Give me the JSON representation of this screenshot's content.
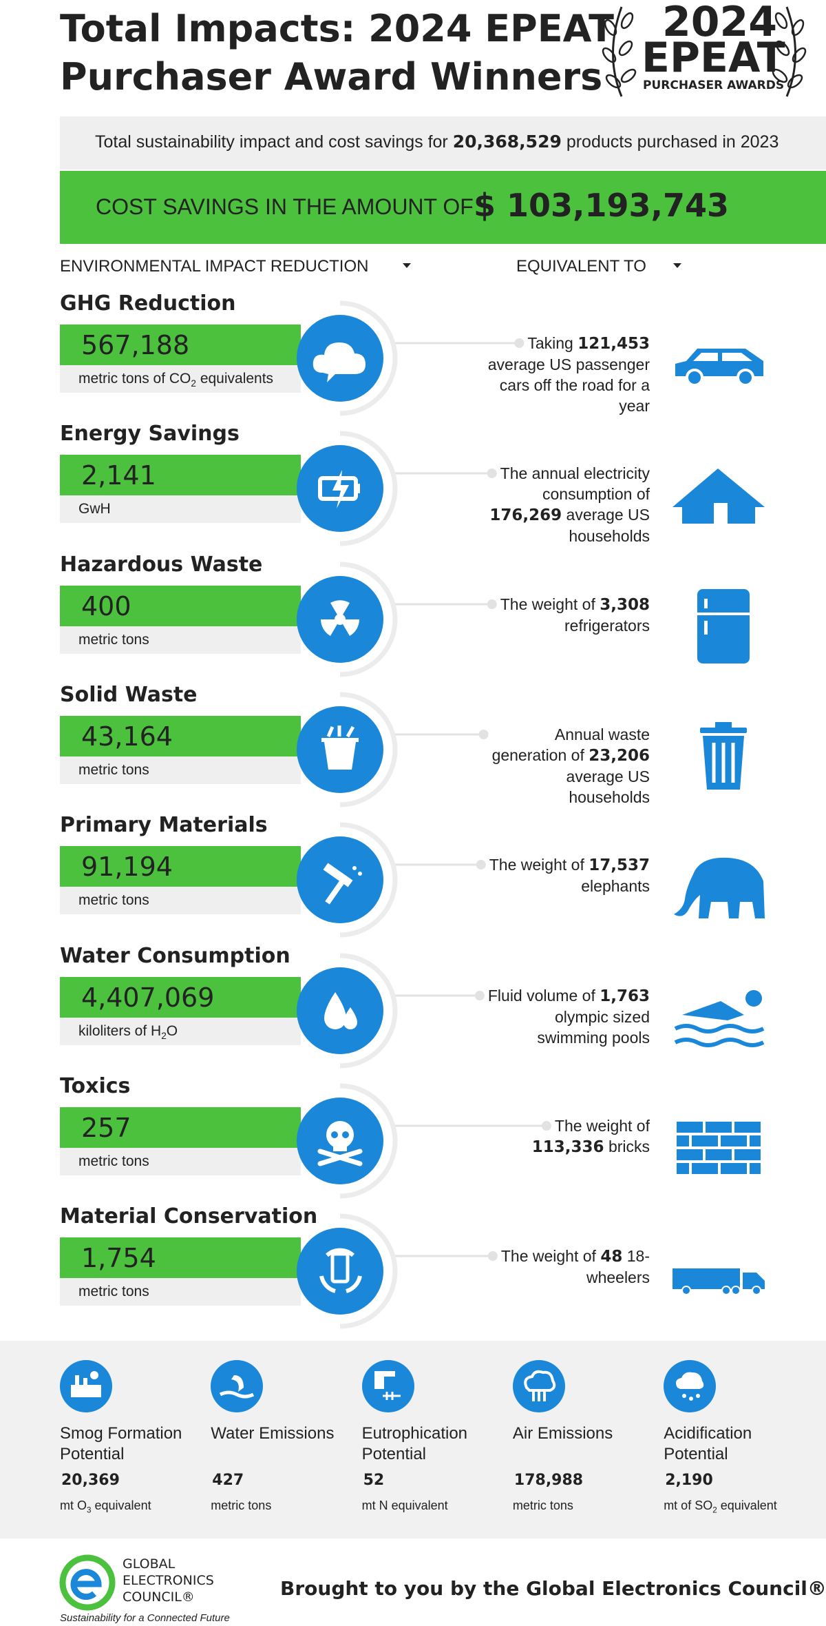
{
  "header": {
    "title_lines": [
      "Total Impacts: 2024 EPEAT",
      "Purchaser Award Winners"
    ],
    "badge": [
      "2024",
      "EPEAT",
      "PURCHASER AWARDS"
    ]
  },
  "summary": {
    "pre": "Total sustainability impact and cost savings for",
    "count": "20,368,529",
    "post": "products purchased in 2023"
  },
  "savings": {
    "label": "COST SAVINGS IN THE AMOUNT OF",
    "amount": "$ 103,193,743"
  },
  "columns": [
    "ENVIRONMENTAL IMPACT REDUCTION",
    "EQUIVALENT TO"
  ],
  "impacts": [
    {
      "title": "GHG Reduction",
      "value": "567,188",
      "unit": [
        "metric tons of CO",
        "2",
        " equivalents"
      ],
      "equiv": {
        "pre": "Taking",
        "number": "121,453",
        "post": "average US passenger cars off the road for a year"
      }
    },
    {
      "title": "Energy Savings",
      "value": "2,141",
      "unit": [
        "GwH"
      ],
      "equiv": {
        "pre": "The annual electricity consumption of",
        "number": "176,269",
        "post": "average US households"
      }
    },
    {
      "title": "Hazardous Waste",
      "value": "400",
      "unit": [
        "metric tons"
      ],
      "equiv": {
        "pre": "The weight of",
        "number": "3,308",
        "post": "refrigerators"
      }
    },
    {
      "title": "Solid Waste",
      "value": "43,164",
      "unit": [
        "metric tons"
      ],
      "equiv": {
        "pre": "Annual waste generation of",
        "number": "23,206",
        "post": "average US households"
      }
    },
    {
      "title": "Primary Materials",
      "value": "91,194",
      "unit": [
        "metric tons"
      ],
      "equiv": {
        "pre": "The weight of",
        "number": "17,537",
        "post": "elephants"
      }
    },
    {
      "title": "Water Consumption",
      "value": "4,407,069",
      "unit": [
        "kiloliters of H",
        "2",
        "O"
      ],
      "equiv": {
        "pre": "Fluid volume of",
        "number": "1,763",
        "post": "olympic sized swimming pools"
      }
    },
    {
      "title": "Toxics",
      "value": "257",
      "unit": [
        "metric tons"
      ],
      "equiv": {
        "pre": "The weight of",
        "number": "113,336",
        "post": "bricks"
      }
    },
    {
      "title": "Material Conservation",
      "value": "1,754",
      "unit": [
        "metric tons"
      ],
      "equiv": {
        "pre": "The weight of",
        "number": "48",
        "post": "18-wheelers"
      }
    }
  ],
  "emissions": [
    {
      "name": "Smog Formation Potential",
      "value": "20,369",
      "unit": [
        "mt O",
        "3",
        " equivalent"
      ]
    },
    {
      "name": "Water Emissions",
      "value": "427",
      "unit": [
        "metric tons"
      ]
    },
    {
      "name": "Eutrophication Potential",
      "value": "52",
      "unit": [
        "mt N equivalent"
      ]
    },
    {
      "name": "Air Emissions",
      "value": "178,988",
      "unit": [
        "metric tons"
      ]
    },
    {
      "name": "Acidification Potential",
      "value": "2,190",
      "unit": [
        "mt of SO",
        "2",
        " equivalent"
      ]
    }
  ],
  "footer": {
    "org_lines": [
      "GLOBAL",
      "ELECTRONICS",
      "COUNCIL®"
    ],
    "tagline": "Sustainability for a Connected Future",
    "credit": "Brought to you by the Global Electronics Council®"
  }
}
